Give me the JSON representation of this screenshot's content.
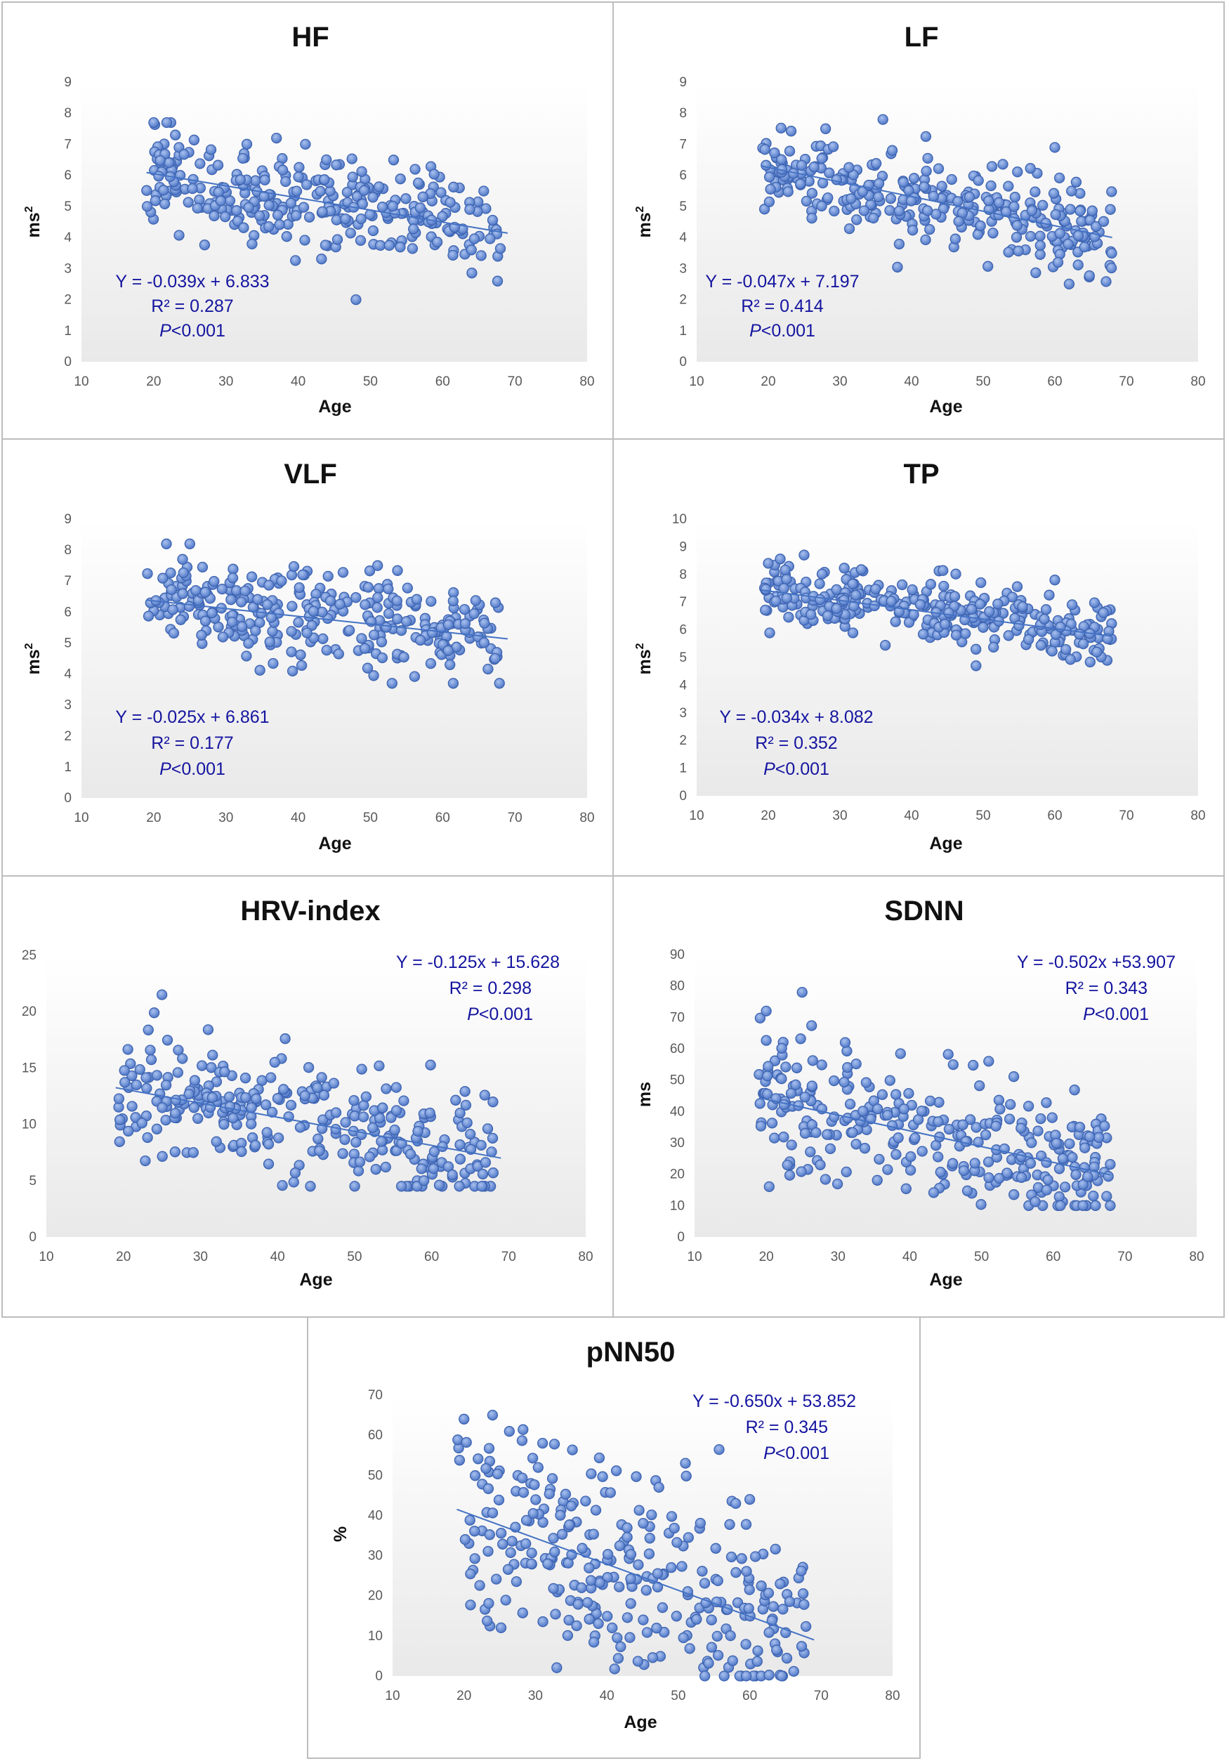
{
  "chart_data": [
    {
      "id": "hf",
      "type": "scatter",
      "title": "HF",
      "xlabel": "Age",
      "ylabel": "ms",
      "ylabel_sup": "2",
      "xlim": [
        10,
        80
      ],
      "ylim": [
        0,
        9
      ],
      "xticks": [
        "10",
        "20",
        "30",
        "40",
        "50",
        "60",
        "70",
        "80"
      ],
      "yticks": [
        "0",
        "1",
        "2",
        "3",
        "4",
        "5",
        "6",
        "7",
        "8",
        "9"
      ],
      "annotation_pos": "bottom-left",
      "regression": {
        "slope": -0.039,
        "intercept": 6.833,
        "x_range": [
          19,
          69
        ]
      },
      "equation": "Y = -0.039x + 6.833",
      "r2": "R² = 0.287",
      "p_italic": "P",
      "p_rest": "<0.001",
      "seed": 11,
      "n": 300,
      "resid_sd": 0.8,
      "ymin_clip": 2.0,
      "ymax_clip": 7.7,
      "outliers": [
        [
          20,
          7.7
        ],
        [
          23,
          7.3
        ],
        [
          48,
          2.0
        ],
        [
          41,
          7.0
        ],
        [
          37,
          7.2
        ]
      ]
    },
    {
      "id": "lf",
      "type": "scatter",
      "title": "LF",
      "xlabel": "Age",
      "ylabel": "ms",
      "ylabel_sup": "2",
      "xlim": [
        10,
        80
      ],
      "ylim": [
        0,
        9
      ],
      "xticks": [
        "10",
        "20",
        "30",
        "40",
        "50",
        "60",
        "70",
        "80"
      ],
      "yticks": [
        "0",
        "1",
        "2",
        "3",
        "4",
        "5",
        "6",
        "7",
        "8",
        "9"
      ],
      "annotation_pos": "bottom-left",
      "regression": {
        "slope": -0.047,
        "intercept": 7.197,
        "x_range": [
          19,
          68
        ]
      },
      "equation": "Y = -0.047x + 7.197",
      "r2": "R² = 0.414",
      "p_italic": "P",
      "p_rest": "<0.001",
      "seed": 23,
      "n": 300,
      "resid_sd": 0.65,
      "ymin_clip": 2.5,
      "ymax_clip": 7.8,
      "outliers": [
        [
          36,
          7.8
        ],
        [
          28,
          7.5
        ],
        [
          42,
          7.25
        ],
        [
          60,
          6.9
        ],
        [
          62,
          2.5
        ]
      ]
    },
    {
      "id": "vlf",
      "type": "scatter",
      "title": "VLF",
      "xlabel": "Age",
      "ylabel": "ms",
      "ylabel_sup": "2",
      "xlim": [
        10,
        80
      ],
      "ylim": [
        0,
        9
      ],
      "xticks": [
        "10",
        "20",
        "30",
        "40",
        "50",
        "60",
        "70",
        "80"
      ],
      "yticks": [
        "0",
        "1",
        "2",
        "3",
        "4",
        "5",
        "6",
        "7",
        "8",
        "9"
      ],
      "annotation_pos": "bottom-left",
      "regression": {
        "slope": -0.025,
        "intercept": 6.861,
        "x_range": [
          19,
          69
        ]
      },
      "equation": "Y = -0.025x + 6.861",
      "r2": "R² = 0.177",
      "p_italic": "P",
      "p_rest": "<0.001",
      "seed": 37,
      "n": 300,
      "resid_sd": 0.75,
      "ymin_clip": 3.7,
      "ymax_clip": 8.2,
      "outliers": [
        [
          25,
          8.2
        ],
        [
          24,
          7.7
        ],
        [
          53,
          3.7
        ],
        [
          51,
          7.5
        ]
      ]
    },
    {
      "id": "tp",
      "type": "scatter",
      "title": "TP",
      "xlabel": "Age",
      "ylabel": "ms",
      "ylabel_sup": "2",
      "xlim": [
        10,
        80
      ],
      "ylim": [
        0,
        10
      ],
      "xticks": [
        "10",
        "20",
        "30",
        "40",
        "50",
        "60",
        "70",
        "80"
      ],
      "yticks": [
        "0",
        "1",
        "2",
        "3",
        "4",
        "5",
        "6",
        "7",
        "8",
        "9",
        "10"
      ],
      "annotation_pos": "bottom-left",
      "regression": {
        "slope": -0.034,
        "intercept": 8.082,
        "x_range": [
          19,
          68
        ]
      },
      "equation": "Y = -0.034x + 8.082",
      "r2": "R² = 0.352",
      "p_italic": "P",
      "p_rest": "<0.001",
      "seed": 41,
      "n": 300,
      "resid_sd": 0.6,
      "ymin_clip": 4.6,
      "ymax_clip": 8.7,
      "outliers": [
        [
          25,
          8.7
        ],
        [
          20,
          8.4
        ],
        [
          49,
          4.7
        ],
        [
          60,
          7.8
        ]
      ]
    },
    {
      "id": "hrv",
      "type": "scatter",
      "title": "HRV-index",
      "xlabel": "Age",
      "ylabel": "",
      "ylabel_sup": "",
      "xlim": [
        10,
        80
      ],
      "ylim": [
        0,
        25
      ],
      "xticks": [
        "10",
        "20",
        "30",
        "40",
        "50",
        "60",
        "70",
        "80"
      ],
      "yticks": [
        "0",
        "5",
        "10",
        "15",
        "20",
        "25"
      ],
      "annotation_pos": "top-right",
      "regression": {
        "slope": -0.125,
        "intercept": 15.628,
        "x_range": [
          19,
          69
        ]
      },
      "equation": "Y = -0.125x + 15.628",
      "r2": "R² = 0.298",
      "p_italic": "P",
      "p_rest": "<0.001",
      "seed": 53,
      "n": 300,
      "resid_sd": 2.6,
      "ymin_clip": 4.5,
      "ymax_clip": 21.5,
      "outliers": [
        [
          25,
          21.5
        ],
        [
          24,
          19.9
        ],
        [
          31,
          18.4
        ],
        [
          41,
          17.6
        ],
        [
          61,
          4.6
        ]
      ]
    },
    {
      "id": "sdnn",
      "type": "scatter",
      "title": "SDNN",
      "xlabel": "Age",
      "ylabel": "ms",
      "ylabel_sup": "",
      "xlim": [
        10,
        80
      ],
      "ylim": [
        0,
        90
      ],
      "xticks": [
        "10",
        "20",
        "30",
        "40",
        "50",
        "60",
        "70",
        "80"
      ],
      "yticks": [
        "0",
        "10",
        "20",
        "30",
        "40",
        "50",
        "60",
        "70",
        "80",
        "90"
      ],
      "annotation_pos": "top-right",
      "regression": {
        "slope": -0.502,
        "intercept": 53.907,
        "x_range": [
          19,
          68
        ]
      },
      "equation": "Y = -0.502x +53.907",
      "r2": "R² = 0.343",
      "p_italic": "P",
      "p_rest": "<0.001",
      "seed": 67,
      "n": 300,
      "resid_sd": 9.5,
      "ymin_clip": 10,
      "ymax_clip": 78,
      "outliers": [
        [
          25,
          78
        ],
        [
          20,
          72
        ],
        [
          31,
          62
        ],
        [
          61,
          10
        ],
        [
          51,
          56
        ]
      ]
    },
    {
      "id": "pnn50",
      "type": "scatter",
      "title": "pNN50",
      "xlabel": "Age",
      "ylabel": "%",
      "ylabel_sup": "",
      "xlim": [
        10,
        80
      ],
      "ylim": [
        0,
        70
      ],
      "xticks": [
        "10",
        "20",
        "30",
        "40",
        "50",
        "60",
        "70",
        "80"
      ],
      "yticks": [
        "0",
        "10",
        "20",
        "30",
        "40",
        "50",
        "60",
        "70"
      ],
      "annotation_pos": "top-right",
      "regression": {
        "slope": -0.65,
        "intercept": 53.852,
        "x_range": [
          19,
          69
        ]
      },
      "equation": "Y = -0.650x + 53.852",
      "r2": "R² = 0.345",
      "p_italic": "P",
      "p_rest": "<0.001",
      "seed": 79,
      "n": 300,
      "resid_sd": 12.5,
      "ymin_clip": 0,
      "ymax_clip": 65,
      "outliers": [
        [
          24,
          65
        ],
        [
          20,
          64
        ],
        [
          31,
          58
        ],
        [
          51,
          53
        ],
        [
          60,
          44
        ]
      ]
    }
  ]
}
